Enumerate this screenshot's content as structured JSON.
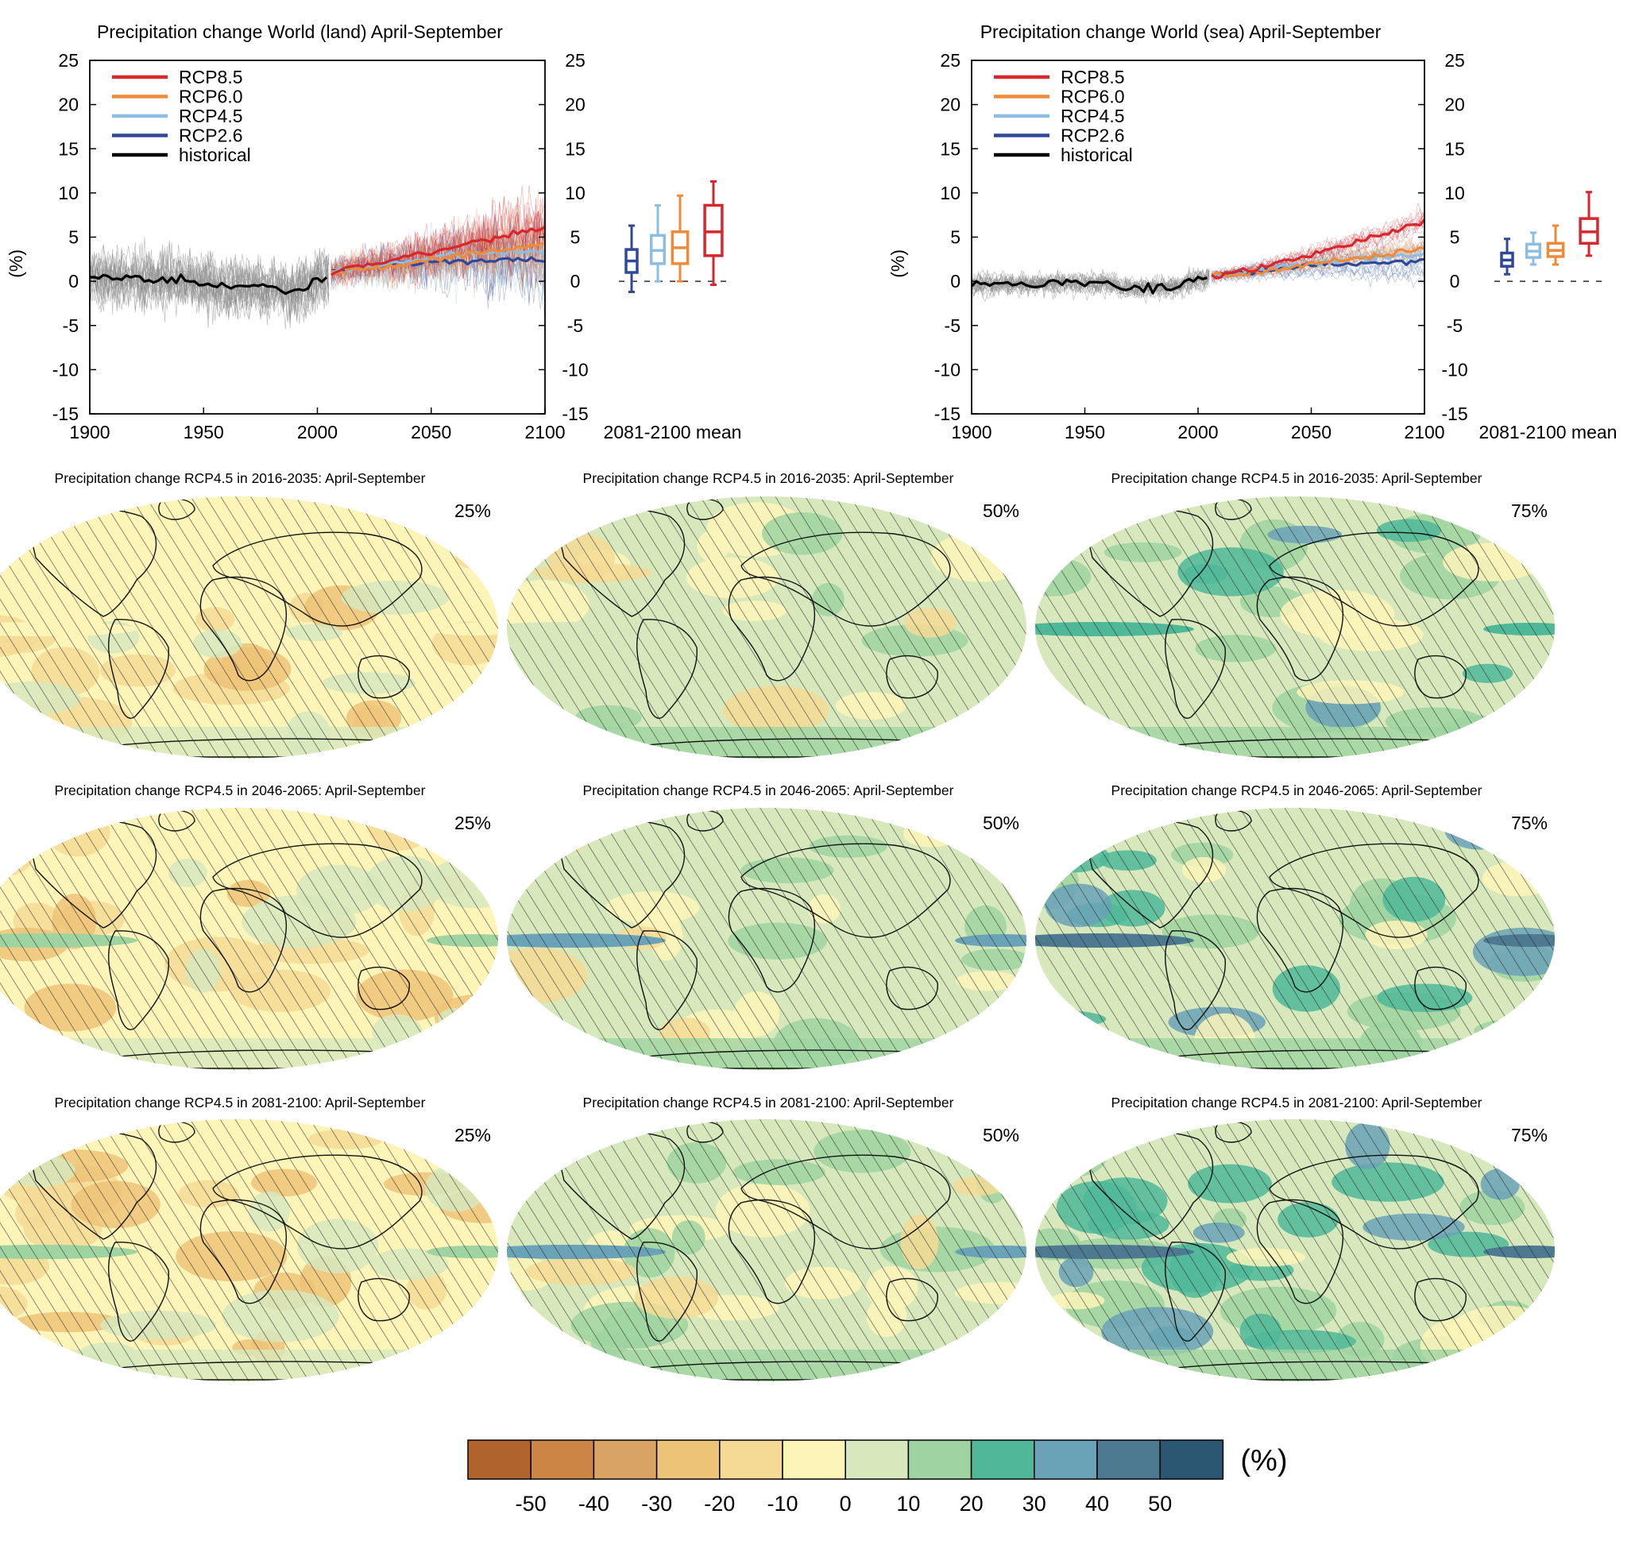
{
  "colors": {
    "rcp85": "#d7262c",
    "rcp60": "#ee8a38",
    "rcp45": "#8dbde0",
    "rcp26": "#2f4898",
    "historical": "#000000",
    "hist_spread": "#8c8c8c",
    "land": "#efe6cf",
    "ocean_base": "#fdf4b8"
  },
  "chart_data": [
    {
      "type": "line",
      "title": "Precipitation change World (land) April-September",
      "ylabel": "(%)",
      "xlim": [
        1900,
        2100
      ],
      "ylim": [
        -15,
        25
      ],
      "x_ticks": [
        1900,
        1950,
        2000,
        2050,
        2100
      ],
      "y_ticks": [
        -15,
        -10,
        -5,
        0,
        5,
        10,
        15,
        20,
        25
      ],
      "legend_position": "top-left",
      "series": [
        {
          "name": "RCP8.5",
          "key": "rcp85",
          "x": [
            2006,
            2020,
            2040,
            2060,
            2080,
            2100
          ],
          "y": [
            1.0,
            1.8,
            2.8,
            3.9,
            5.1,
            6.2
          ]
        },
        {
          "name": "RCP6.0",
          "key": "rcp60",
          "x": [
            2006,
            2020,
            2040,
            2060,
            2080,
            2100
          ],
          "y": [
            1.0,
            1.4,
            2.0,
            2.9,
            3.6,
            4.1
          ]
        },
        {
          "name": "RCP4.5",
          "key": "rcp45",
          "x": [
            2006,
            2020,
            2040,
            2060,
            2080,
            2100
          ],
          "y": [
            1.0,
            1.5,
            2.3,
            3.0,
            3.3,
            3.5
          ]
        },
        {
          "name": "RCP2.6",
          "key": "rcp26",
          "x": [
            2006,
            2020,
            2040,
            2060,
            2080,
            2100
          ],
          "y": [
            1.0,
            1.5,
            2.1,
            2.4,
            2.4,
            2.3
          ]
        },
        {
          "name": "historical",
          "key": "historical",
          "x": [
            1900,
            1920,
            1940,
            1960,
            1980,
            1990,
            2005
          ],
          "y": [
            0.5,
            0.3,
            0.2,
            -0.6,
            -0.7,
            -1.2,
            0.8
          ]
        }
      ],
      "boxes_label": "2081-2100 mean",
      "boxes": [
        {
          "key": "rcp26",
          "min": -1.2,
          "q1": 1.0,
          "median": 2.3,
          "q3": 3.6,
          "max": 6.3
        },
        {
          "key": "rcp45",
          "min": 0.0,
          "q1": 2.0,
          "median": 3.5,
          "q3": 5.2,
          "max": 8.6
        },
        {
          "key": "rcp60",
          "min": 0.0,
          "q1": 2.0,
          "median": 3.8,
          "q3": 5.6,
          "max": 9.7
        },
        {
          "key": "rcp85",
          "min": -0.4,
          "q1": 2.9,
          "median": 5.6,
          "q3": 8.6,
          "max": 11.3
        }
      ]
    },
    {
      "type": "line",
      "title": "Precipitation change World (sea) April-September",
      "ylabel": "(%)",
      "xlim": [
        1900,
        2100
      ],
      "ylim": [
        -15,
        25
      ],
      "x_ticks": [
        1900,
        1950,
        2000,
        2050,
        2100
      ],
      "y_ticks": [
        -15,
        -10,
        -5,
        0,
        5,
        10,
        15,
        20,
        25
      ],
      "legend_position": "top-left",
      "series": [
        {
          "name": "RCP8.5",
          "key": "rcp85",
          "x": [
            2006,
            2020,
            2040,
            2060,
            2080,
            2100
          ],
          "y": [
            0.6,
            1.1,
            2.3,
            3.7,
            5.2,
            6.7
          ]
        },
        {
          "name": "RCP6.0",
          "key": "rcp60",
          "x": [
            2006,
            2020,
            2040,
            2060,
            2080,
            2100
          ],
          "y": [
            0.6,
            0.9,
            1.5,
            2.3,
            3.0,
            3.6
          ]
        },
        {
          "name": "RCP4.5",
          "key": "rcp45",
          "x": [
            2006,
            2020,
            2040,
            2060,
            2080,
            2100
          ],
          "y": [
            0.6,
            1.0,
            1.7,
            2.3,
            2.8,
            3.0
          ]
        },
        {
          "name": "RCP2.6",
          "key": "rcp26",
          "x": [
            2006,
            2020,
            2040,
            2060,
            2080,
            2100
          ],
          "y": [
            0.6,
            1.0,
            1.6,
            2.0,
            2.1,
            2.2
          ]
        },
        {
          "name": "historical",
          "key": "historical",
          "x": [
            1900,
            1920,
            1940,
            1960,
            1970,
            1990,
            2005
          ],
          "y": [
            -0.3,
            -0.3,
            -0.1,
            -0.2,
            -0.8,
            -0.6,
            0.6
          ]
        }
      ],
      "boxes_label": "2081-2100 mean",
      "boxes": [
        {
          "key": "rcp26",
          "min": 0.8,
          "q1": 1.7,
          "median": 2.4,
          "q3": 3.2,
          "max": 4.8
        },
        {
          "key": "rcp45",
          "min": 1.9,
          "q1": 2.7,
          "median": 3.4,
          "q3": 4.2,
          "max": 5.5
        },
        {
          "key": "rcp60",
          "min": 1.9,
          "q1": 2.8,
          "median": 3.5,
          "q3": 4.3,
          "max": 6.3
        },
        {
          "key": "rcp85",
          "min": 2.9,
          "q1": 4.3,
          "median": 5.6,
          "q3": 7.1,
          "max": 10.1
        }
      ]
    },
    {
      "type": "heatmap",
      "description_maps": [
        {
          "title": "Precipitation change RCP4.5 in 2016-2035: April-September",
          "percentile": "25%"
        },
        {
          "title": "Precipitation change RCP4.5 in 2016-2035: April-September",
          "percentile": "50%"
        },
        {
          "title": "Precipitation change RCP4.5 in 2016-2035: April-September",
          "percentile": "75%"
        },
        {
          "title": "Precipitation change RCP4.5 in 2046-2065: April-September",
          "percentile": "25%"
        },
        {
          "title": "Precipitation change RCP4.5 in 2046-2065: April-September",
          "percentile": "50%"
        },
        {
          "title": "Precipitation change RCP4.5 in 2046-2065: April-September",
          "percentile": "75%"
        },
        {
          "title": "Precipitation change RCP4.5 in 2081-2100: April-September",
          "percentile": "25%"
        },
        {
          "title": "Precipitation change RCP4.5 in 2081-2100: April-September",
          "percentile": "50%"
        },
        {
          "title": "Precipitation change RCP4.5 in 2081-2100: April-September",
          "percentile": "75%"
        }
      ],
      "colorbar": {
        "unit": "(%)",
        "ticks": [
          "-50",
          "-40",
          "-30",
          "-20",
          "-10",
          "0",
          "10",
          "20",
          "30",
          "40",
          "50"
        ],
        "colors": [
          "#b0642c",
          "#cc8545",
          "#d9a363",
          "#edc377",
          "#f4da95",
          "#fdf4b8",
          "#d7e8bd",
          "#9fd3a1",
          "#4fb899",
          "#6aa2b7",
          "#4d7991",
          "#2b5772"
        ]
      }
    }
  ]
}
